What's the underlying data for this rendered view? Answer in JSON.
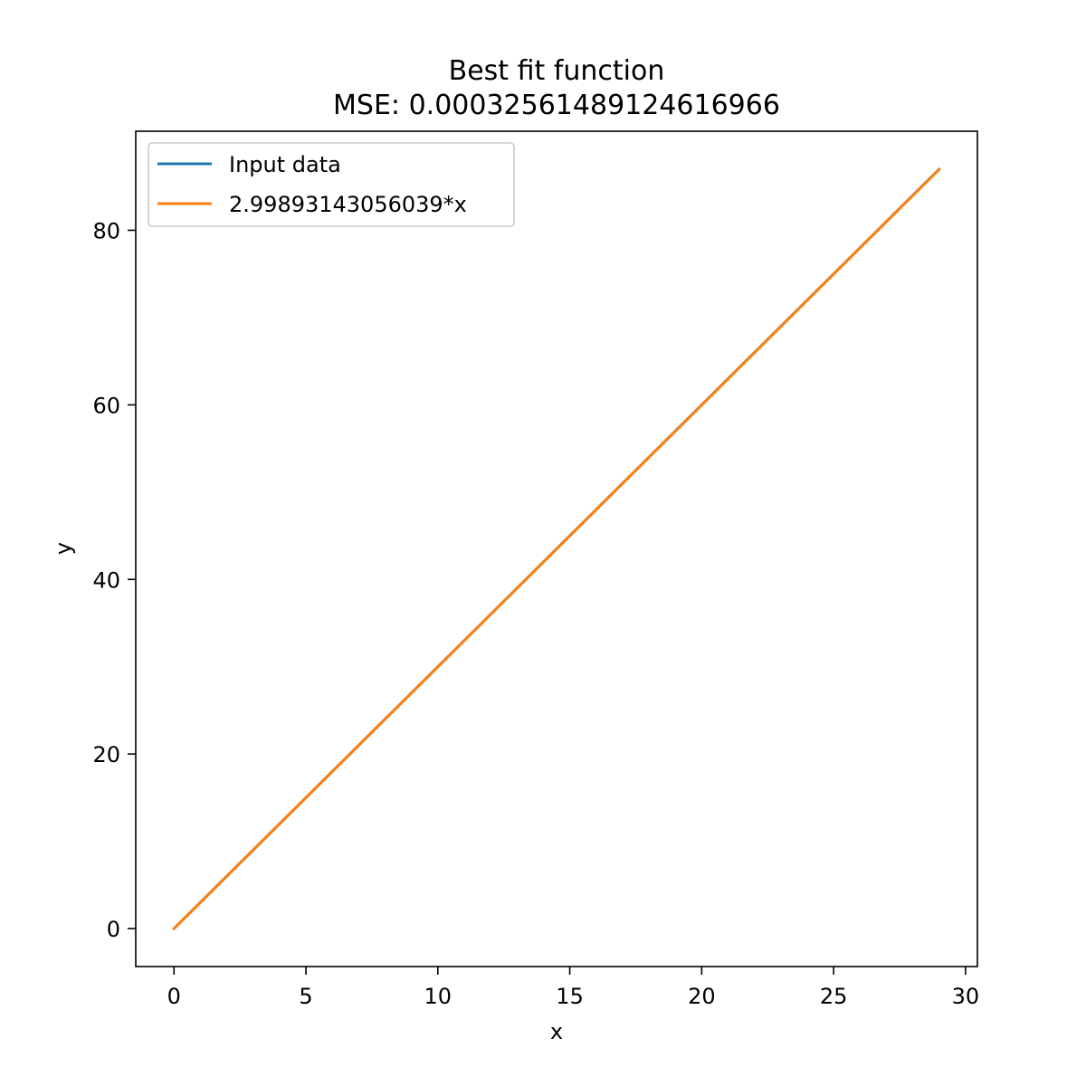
{
  "chart_data": {
    "type": "line",
    "title": "Best fit function",
    "subtitle": "MSE: 0.00032561489124616966",
    "xlabel": "x",
    "ylabel": "y",
    "xlim": [
      -1.45,
      30.45
    ],
    "ylim": [
      -4.35,
      91.35
    ],
    "xticks": [
      0,
      5,
      10,
      15,
      20,
      25,
      30
    ],
    "yticks": [
      0,
      20,
      40,
      60,
      80
    ],
    "xtick_labels": [
      "0",
      "5",
      "10",
      "15",
      "20",
      "25",
      "30"
    ],
    "ytick_labels": [
      "0",
      "20",
      "40",
      "60",
      "80"
    ],
    "grid": false,
    "legend_position": "top-left",
    "series": [
      {
        "name": "Input data",
        "color": "#1f77b4",
        "x": [
          0,
          29
        ],
        "y": [
          0,
          87
        ]
      },
      {
        "name": "2.99893143056039*x",
        "color": "#ff7f0e",
        "x": [
          0,
          29
        ],
        "y": [
          0,
          86.969
        ]
      }
    ]
  }
}
